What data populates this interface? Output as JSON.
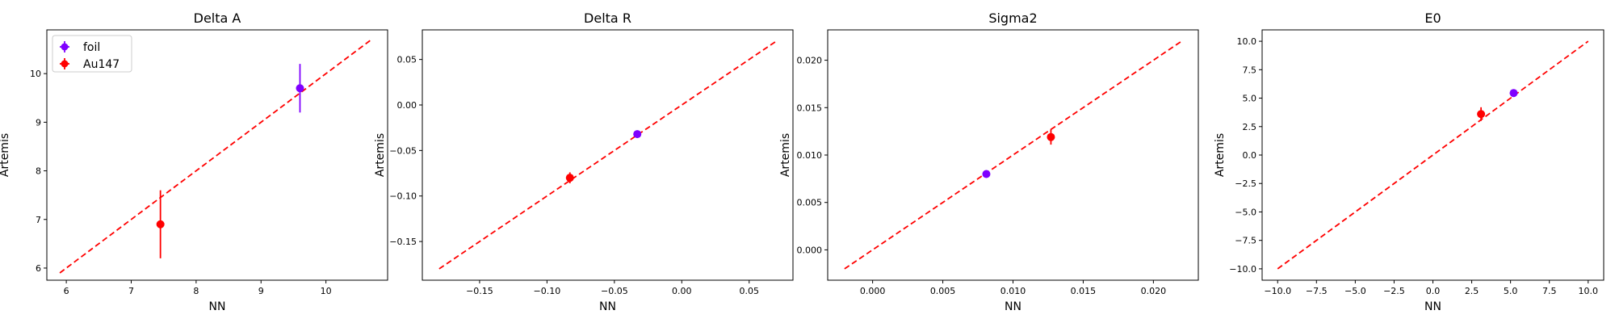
{
  "chart_data": [
    {
      "type": "scatter",
      "title": "Delta A",
      "xlabel": "NN",
      "ylabel": "Artemis",
      "xlim": [
        5.7,
        10.95
      ],
      "ylim": [
        5.75,
        10.9
      ],
      "xticks": [
        "6",
        "7",
        "8",
        "9",
        "10"
      ],
      "yticks": [
        "6",
        "7",
        "8",
        "9",
        "10"
      ],
      "reference_line": [
        5.9,
        10.7
      ],
      "legend": "top-left",
      "series": [
        {
          "name": "foil",
          "color": "#7f00ff",
          "x": 9.6,
          "y": 9.7,
          "yerr": 0.5
        },
        {
          "name": "Au147",
          "color": "#ff0000",
          "x": 7.45,
          "y": 6.9,
          "yerr": 0.7
        }
      ]
    },
    {
      "type": "scatter",
      "title": "Delta R",
      "xlabel": "NN",
      "ylabel": "Artemis",
      "xlim": [
        -0.1925,
        0.0825
      ],
      "ylim": [
        -0.1925,
        0.0825
      ],
      "xticks": [
        "−0.15",
        "−0.10",
        "−0.05",
        "0.00",
        "0.05"
      ],
      "yticks": [
        "−0.15",
        "−0.10",
        "−0.05",
        "0.00",
        "0.05"
      ],
      "reference_line": [
        -0.18,
        0.07
      ],
      "series": [
        {
          "name": "foil",
          "color": "#7f00ff",
          "x": -0.033,
          "y": -0.032,
          "yerr": 0.003
        },
        {
          "name": "Au147",
          "color": "#ff0000",
          "x": -0.083,
          "y": -0.08,
          "yerr": 0.006
        }
      ]
    },
    {
      "type": "scatter",
      "title": "Sigma2",
      "xlabel": "NN",
      "ylabel": "Artemis",
      "xlim": [
        -0.0032,
        0.0232
      ],
      "ylim": [
        -0.0032,
        0.0232
      ],
      "xticks": [
        "0.000",
        "0.005",
        "0.010",
        "0.015",
        "0.020"
      ],
      "yticks": [
        "0.000",
        "0.005",
        "0.010",
        "0.015",
        "0.020"
      ],
      "reference_line": [
        -0.002,
        0.022
      ],
      "series": [
        {
          "name": "foil",
          "color": "#7f00ff",
          "x": 0.0081,
          "y": 0.008,
          "yerr": 0.0002
        },
        {
          "name": "Au147",
          "color": "#ff0000",
          "x": 0.0127,
          "y": 0.0119,
          "yerr": 0.0008
        }
      ]
    },
    {
      "type": "scatter",
      "title": "E0",
      "xlabel": "NN",
      "ylabel": "Artemis",
      "xlim": [
        -11.0,
        11.0
      ],
      "ylim": [
        -11.0,
        11.0
      ],
      "xticks": [
        "−10.0",
        "−7.5",
        "−5.0",
        "−2.5",
        "0.0",
        "2.5",
        "5.0",
        "7.5",
        "10.0"
      ],
      "yticks": [
        "−10.0",
        "−7.5",
        "−5.0",
        "−2.5",
        "0.0",
        "2.5",
        "5.0",
        "7.5",
        "10.0"
      ],
      "reference_line": [
        -10.0,
        10.0
      ],
      "series": [
        {
          "name": "foil",
          "color": "#7f00ff",
          "x": 5.2,
          "y": 5.45,
          "yerr": 0.2
        },
        {
          "name": "Au147",
          "color": "#ff0000",
          "x": 3.1,
          "y": 3.6,
          "yerr": 0.6
        }
      ]
    }
  ]
}
